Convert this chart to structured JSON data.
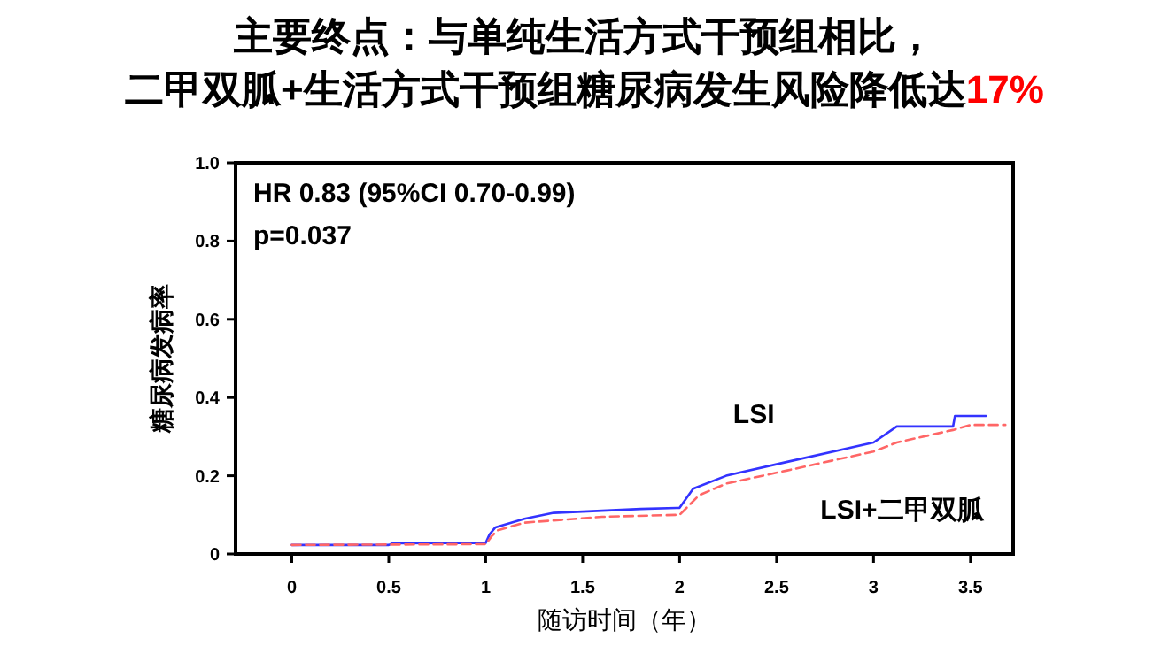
{
  "chart_data": {
    "type": "line",
    "title": "主要终点：与单纯生活方式干预组相比，",
    "subtitle": "二甲双胍+生活方式干预组糖尿病发生风险降低达17%",
    "xlabel": "随访时间（年）",
    "ylabel": "糖尿病发病率",
    "annotations": [
      "HR 0.83   (95%CI 0.70-0.99)",
      "p=0.037"
    ],
    "xlim": [
      -0.29,
      3.72
    ],
    "ylim": [
      0,
      1
    ],
    "xticks": [
      0,
      0.5,
      1,
      1.5,
      2,
      2.5,
      3,
      3.5
    ],
    "yticks": [
      0,
      0.2,
      0.4,
      0.6,
      0.8,
      {
        "value": 1,
        "label": "1.0"
      }
    ],
    "grid": false,
    "legend": false,
    "marker": "none",
    "series": [
      {
        "name": "LSI",
        "color": "#3333ff",
        "line_style": "solid",
        "x": [
          0,
          0.5,
          0.52,
          1.0,
          1.02,
          1.05,
          1.2,
          1.35,
          1.8,
          2.0,
          2.07,
          2.24,
          2.55,
          3.0,
          3.12,
          3.41,
          3.42,
          3.58
        ],
        "values": [
          0.023,
          0.023,
          0.027,
          0.028,
          0.05,
          0.068,
          0.09,
          0.105,
          0.115,
          0.118,
          0.167,
          0.2,
          0.235,
          0.285,
          0.326,
          0.326,
          0.353,
          0.353
        ]
      },
      {
        "name": "LSI+二甲双胍",
        "color": "#ff6666",
        "line_style": "dashed",
        "x": [
          0,
          1.0,
          1.03,
          1.06,
          1.2,
          1.6,
          2.0,
          2.1,
          2.24,
          2.55,
          3.0,
          3.12,
          3.41,
          3.5,
          3.68
        ],
        "values": [
          0.023,
          0.025,
          0.045,
          0.06,
          0.08,
          0.095,
          0.1,
          0.15,
          0.18,
          0.213,
          0.262,
          0.285,
          0.317,
          0.33,
          0.33
        ]
      }
    ]
  }
}
